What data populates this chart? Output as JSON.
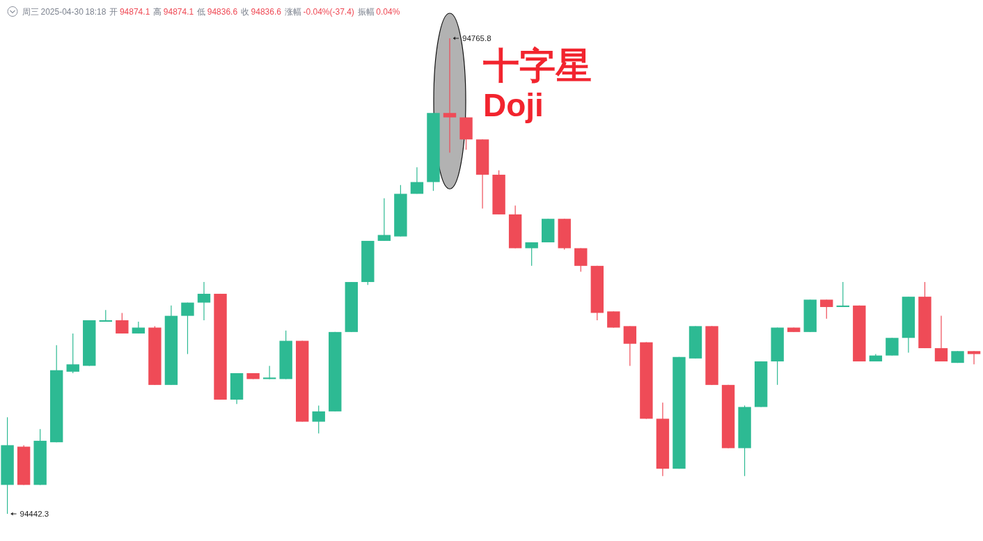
{
  "chart_data": {
    "type": "candlestick",
    "categories": [
      null,
      null,
      null,
      null,
      null,
      null,
      null,
      null,
      null,
      null,
      null,
      null,
      null,
      null,
      null,
      null,
      null,
      null,
      null,
      null,
      null,
      null,
      null,
      null,
      null,
      null,
      null,
      null,
      null,
      null,
      null,
      null,
      null,
      null,
      null,
      null,
      null,
      null,
      null,
      null,
      null,
      null,
      null,
      null,
      null,
      null,
      null,
      null,
      null,
      null,
      null,
      null,
      null,
      null,
      null,
      null,
      null,
      null,
      null,
      null
    ],
    "ohlc": [
      [
        94462,
        94508,
        94442.3,
        94489
      ],
      [
        94488,
        94489,
        94462,
        94462
      ],
      [
        94462,
        94500,
        94462,
        94492
      ],
      [
        94491,
        94557,
        94491,
        94540
      ],
      [
        94539,
        94565,
        94538,
        94544
      ],
      [
        94543,
        94574,
        94543,
        94574
      ],
      [
        94573,
        94581,
        94573,
        94574
      ],
      [
        94574,
        94579,
        94565,
        94565
      ],
      [
        94565,
        94573,
        94565,
        94569
      ],
      [
        94569,
        94570,
        94530,
        94530
      ],
      [
        94530,
        94584,
        94530,
        94577
      ],
      [
        94577,
        94586,
        94551,
        94586
      ],
      [
        94586,
        94600,
        94574,
        94592
      ],
      [
        94592,
        94592,
        94520,
        94520
      ],
      [
        94520,
        94538,
        94517,
        94538
      ],
      [
        94538,
        94538,
        94534,
        94534
      ],
      [
        94534,
        94543,
        94534,
        94535
      ],
      [
        94534,
        94567,
        94534,
        94560
      ],
      [
        94560,
        94560,
        94505,
        94505
      ],
      [
        94505,
        94516,
        94497,
        94512
      ],
      [
        94512,
        94566,
        94512,
        94566
      ],
      [
        94566,
        94600,
        94566,
        94600
      ],
      [
        94600,
        94628,
        94598,
        94628
      ],
      [
        94628,
        94657,
        94628,
        94632
      ],
      [
        94631,
        94666,
        94631,
        94660
      ],
      [
        94660,
        94678,
        94660,
        94668
      ],
      [
        94668,
        94715,
        94662,
        94715
      ],
      [
        94715,
        94765.8,
        94688,
        94712
      ],
      [
        94712,
        94712,
        94690,
        94697
      ],
      [
        94697,
        94697,
        94650,
        94673
      ],
      [
        94673,
        94676,
        94646,
        94646
      ],
      [
        94646,
        94652,
        94623,
        94623
      ],
      [
        94623,
        94627,
        94611,
        94627
      ],
      [
        94627,
        94643,
        94627,
        94643
      ],
      [
        94643,
        94643,
        94622,
        94623
      ],
      [
        94623,
        94623,
        94607,
        94611
      ],
      [
        94611,
        94611,
        94574,
        94579
      ],
      [
        94580,
        94580,
        94569,
        94569
      ],
      [
        94570,
        94570,
        94543,
        94558
      ],
      [
        94559,
        94559,
        94507,
        94507
      ],
      [
        94507,
        94518,
        94468,
        94473
      ],
      [
        94473,
        94549,
        94473,
        94549
      ],
      [
        94548,
        94570,
        94548,
        94570
      ],
      [
        94570,
        94570,
        94530,
        94530
      ],
      [
        94530,
        94530,
        94487,
        94487
      ],
      [
        94487,
        94516,
        94468,
        94515
      ],
      [
        94515,
        94546,
        94515,
        94546
      ],
      [
        94546,
        94569,
        94530,
        94569
      ],
      [
        94569,
        94569,
        94566,
        94566
      ],
      [
        94566,
        94588,
        94566,
        94588
      ],
      [
        94588,
        94588,
        94575,
        94583
      ],
      [
        94583,
        94600,
        94583,
        94584
      ],
      [
        94584,
        94584,
        94546,
        94546
      ],
      [
        94546,
        94551,
        94546,
        94550
      ],
      [
        94550,
        94562,
        94550,
        94562
      ],
      [
        94562,
        94590,
        94552,
        94590
      ],
      [
        94590,
        94600,
        94555,
        94555
      ],
      [
        94555,
        94577,
        94546,
        94546
      ],
      [
        94545,
        94553,
        94545,
        94553
      ],
      [
        94553,
        94553,
        94544,
        94551
      ]
    ],
    "colors": [
      "#2dba93",
      "#ef4b57",
      "#2dba93",
      "#2dba93",
      "#2dba93",
      "#2dba93",
      "#2dba93",
      "#ef4b57",
      "#2dba93",
      "#ef4b57",
      "#2dba93",
      "#2dba93",
      "#2dba93",
      "#ef4b57",
      "#2dba93",
      "#ef4b57",
      "#2dba93",
      "#2dba93",
      "#ef4b57",
      "#2dba93",
      "#2dba93",
      "#2dba93",
      "#2dba93",
      "#2dba93",
      "#2dba93",
      "#2dba93",
      "#2dba93",
      "#ef4b57",
      "#ef4b57",
      "#ef4b57",
      "#ef4b57",
      "#ef4b57",
      "#2dba93",
      "#2dba93",
      "#ef4b57",
      "#ef4b57",
      "#ef4b57",
      "#ef4b57",
      "#ef4b57",
      "#ef4b57",
      "#ef4b57",
      "#2dba93",
      "#2dba93",
      "#ef4b57",
      "#ef4b57",
      "#2dba93",
      "#2dba93",
      "#2dba93",
      "#ef4b57",
      "#2dba93",
      "#ef4b57",
      "#2dba93",
      "#ef4b57",
      "#2dba93",
      "#2dba93",
      "#2dba93",
      "#ef4b57",
      "#ef4b57",
      "#2dba93",
      "#ef4b57"
    ],
    "annotations": [
      "周三 2025-04-30 18:18 开 94874.1 高 94874.1 低 94836.6 收 94836.6 涨幅 -0.04%(-37.4) 振幅 0.04%",
      "十字星",
      "Doji",
      "94765.8",
      "94442.3"
    ]
  }
}
